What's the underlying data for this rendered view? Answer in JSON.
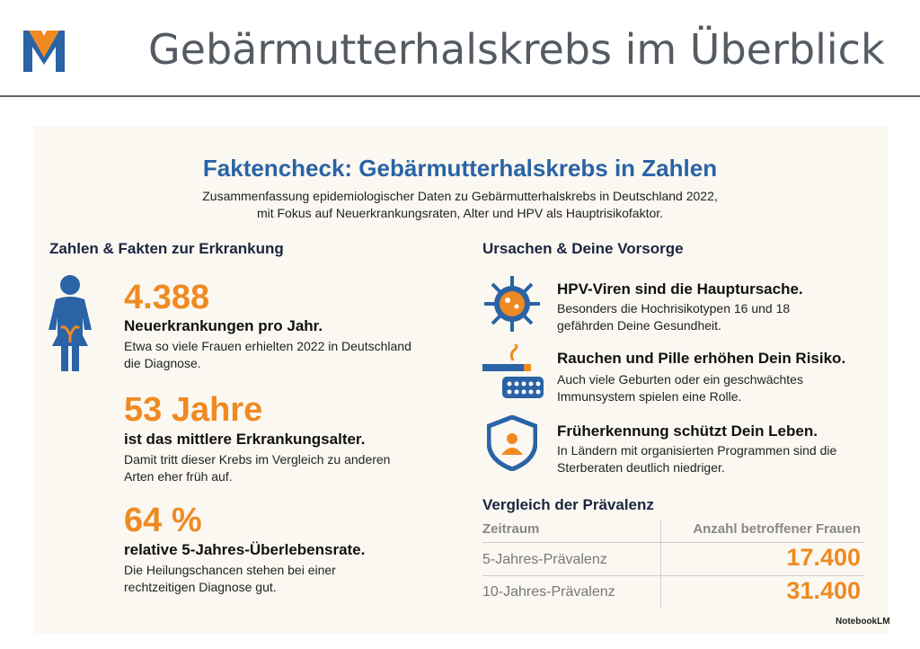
{
  "header": {
    "logo": "M",
    "title": "Gebärmutterhalskrebs im Überblick"
  },
  "infographic": {
    "title": "Faktencheck: Gebärmutterhalskrebs in Zahlen",
    "subtitle": [
      "Zusammenfassung epidemiologischer Daten zu Gebärmutterhalskrebs in Deutschland 2022,",
      "mit Fokus auf Neuerkrankungsraten, Alter und HPV als Hauptrisikofaktor."
    ],
    "left": {
      "heading": "Zahlen & Fakten zur Erkrankung",
      "facts": [
        {
          "value": "4.388",
          "label": "Neuerkrankungen pro Jahr.",
          "text": "Etwa so viele Frauen erhielten 2022 in Deutschland die Diagnose."
        },
        {
          "value": "53 Jahre",
          "label": "ist das mittlere Erkrankungsalter.",
          "text": "Damit tritt dieser Krebs im Vergleich zu anderen Arten eher früh auf."
        },
        {
          "value": "64 %",
          "label": "relative 5-Jahres-Überlebensrate.",
          "text": "Die Heilungschancen stehen bei einer rechtzeitigen Diagnose gut."
        }
      ]
    },
    "right": {
      "heading": "Ursachen & Deine Vorsorge",
      "causes": [
        {
          "title": "HPV-Viren sind die Hauptursache.",
          "text": "Besonders die Hochrisikotypen 16 und 18 gefährden Deine Gesundheit."
        },
        {
          "title": "Rauchen und Pille erhöhen Dein Risiko.",
          "text": "Auch viele Geburten oder ein geschwächtes Immunsystem spielen eine Rolle."
        },
        {
          "title": "Früherkennung schützt Dein Leben.",
          "text": "In Ländern mit organisierten Programmen sind die Sterberaten deutlich niedriger."
        }
      ],
      "table": {
        "heading": "Vergleich der Prävalenz",
        "columns": [
          "Zeitraum",
          "Anzahl betroffener Frauen"
        ],
        "rows": [
          [
            "5-Jahres-Prävalenz",
            "17.400"
          ],
          [
            "10-Jahres-Prävalenz",
            "31.400"
          ]
        ]
      }
    },
    "footer": "NotebookLM"
  }
}
